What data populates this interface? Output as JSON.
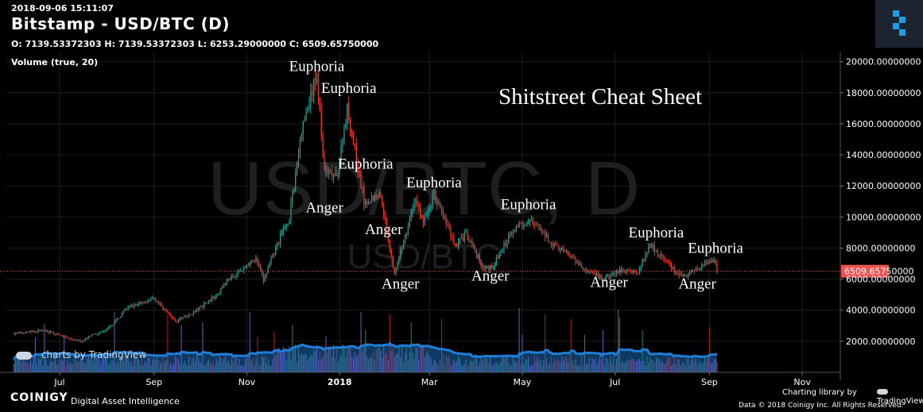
{
  "header": {
    "date": "2018-09-06 15:11:07",
    "title": "Bitstamp - USD/BTC (D)",
    "ohlc": "O: 7139.53372303 H: 7139.53372303 L: 6253.29000000 C: 6509.65750000",
    "volume_label": "Volume (true, 20)"
  },
  "watermark": "USD/BTC, D",
  "watermark_sub": "USD/BTC",
  "tv_watermark": "charts by TradingView",
  "footer": {
    "brand": "COINIGY",
    "brand_sub": "Digital Asset Intelligence",
    "credit_line1": "Charting library by",
    "tv_name": "TradingView",
    "credit_line2": "Data © 2018 Coinigy Inc. All Rights Reserved."
  },
  "colors": {
    "up": "#26a69a",
    "down": "#ef3b2c",
    "volume_line": "#1e7fd8",
    "price_line": "#ef5350",
    "grid": "#1c1c1c"
  },
  "chart_data": {
    "type": "candlestick",
    "title": "Shitstreet Cheat Sheet",
    "x_ticks": [
      "Jul",
      "Sep",
      "Nov",
      "2018",
      "Mar",
      "May",
      "Jul",
      "Sep",
      "Nov"
    ],
    "y_ticks": [
      "2000.00000000",
      "4000.00000000",
      "6000.00000000",
      "8000.00000000",
      "10000.00000000",
      "12000.00000000",
      "14000.00000000",
      "16000.00000000",
      "18000.00000000",
      "20000.00000000"
    ],
    "ylim": [
      0,
      20600
    ],
    "last_price": 6509.6575,
    "last_price_label": "6509.65750000",
    "price_path": [
      [
        "2017-06-01",
        2500
      ],
      [
        "2017-06-20",
        2700
      ],
      [
        "2017-07-16",
        1950
      ],
      [
        "2017-07-20",
        2300
      ],
      [
        "2017-08-01",
        2700
      ],
      [
        "2017-08-15",
        4200
      ],
      [
        "2017-09-01",
        4750
      ],
      [
        "2017-09-15",
        3300
      ],
      [
        "2017-09-25",
        3700
      ],
      [
        "2017-10-10",
        4800
      ],
      [
        "2017-10-20",
        6000
      ],
      [
        "2017-11-07",
        7300
      ],
      [
        "2017-11-12",
        5900
      ],
      [
        "2017-11-20",
        8000
      ],
      [
        "2017-11-29",
        10000
      ],
      [
        "2017-12-07",
        15500
      ],
      [
        "2017-12-17",
        19200
      ],
      [
        "2017-12-22",
        13000
      ],
      [
        "2017-12-30",
        12500
      ],
      [
        "2018-01-06",
        17000
      ],
      [
        "2018-01-17",
        11000
      ],
      [
        "2018-01-28",
        11500
      ],
      [
        "2018-02-06",
        6300
      ],
      [
        "2018-02-20",
        11200
      ],
      [
        "2018-02-25",
        9600
      ],
      [
        "2018-03-04",
        11500
      ],
      [
        "2018-03-18",
        8200
      ],
      [
        "2018-03-25",
        8900
      ],
      [
        "2018-04-06",
        6600
      ],
      [
        "2018-04-12",
        6900
      ],
      [
        "2018-04-25",
        9200
      ],
      [
        "2018-05-05",
        9800
      ],
      [
        "2018-05-20",
        8400
      ],
      [
        "2018-06-01",
        7500
      ],
      [
        "2018-06-12",
        6500
      ],
      [
        "2018-06-24",
        6000
      ],
      [
        "2018-07-05",
        6600
      ],
      [
        "2018-07-16",
        6400
      ],
      [
        "2018-07-24",
        8300
      ],
      [
        "2018-08-10",
        6400
      ],
      [
        "2018-08-14",
        6100
      ],
      [
        "2018-08-30",
        7000
      ],
      [
        "2018-09-04",
        7300
      ],
      [
        "2018-09-06",
        6500
      ]
    ],
    "annotations": [
      {
        "text": "Euphoria",
        "date": "2017-12-17",
        "price": 19400
      },
      {
        "text": "Euphoria",
        "date": "2018-01-07",
        "price": 18000
      },
      {
        "text": "Anger",
        "date": "2017-12-22",
        "price": 10300
      },
      {
        "text": "Euphoria",
        "date": "2018-01-18",
        "price": 13100
      },
      {
        "text": "Anger",
        "date": "2018-01-30",
        "price": 8900
      },
      {
        "text": "Euphoria",
        "date": "2018-03-04",
        "price": 11900
      },
      {
        "text": "Anger",
        "date": "2018-02-10",
        "price": 5400
      },
      {
        "text": "Euphoria",
        "date": "2018-05-05",
        "price": 10500
      },
      {
        "text": "Anger",
        "date": "2018-04-10",
        "price": 5900
      },
      {
        "text": "Euphoria",
        "date": "2018-07-28",
        "price": 8700
      },
      {
        "text": "Anger",
        "date": "2018-06-27",
        "price": 5500
      },
      {
        "text": "Euphoria",
        "date": "2018-09-05",
        "price": 7700
      },
      {
        "text": "Anger",
        "date": "2018-08-24",
        "price": 5400
      }
    ],
    "volume": {
      "label": "Volume (true, 20)",
      "ma_level": "moderate, rising into Jan–Feb 2018 then easing"
    }
  }
}
